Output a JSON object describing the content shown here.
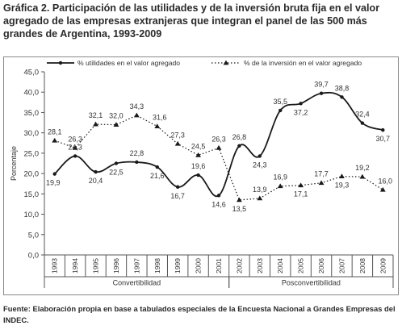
{
  "title": "Gráfica 2. Participación de las utilidades y de la inversión bruta fija en el valor agregado de las empresas extranjeras que integran el panel de las 500 más grandes de Argentina, 1993-2009",
  "source": "Fuente: Elaboración propia en base a tabulados especiales de la Encuesta Nacional a Grandes Empresas del INDEC.",
  "colors": {
    "series": "#1a1a1a",
    "frame": "#8a8a8a"
  },
  "chart_data": {
    "type": "line",
    "categories": [
      "1993",
      "1994",
      "1995",
      "1996",
      "1997",
      "1998",
      "1999",
      "2000",
      "2001",
      "2002",
      "2003",
      "2004",
      "2005",
      "2006",
      "2007",
      "2008",
      "2009"
    ],
    "ylabel": "Porcentaje",
    "ylim": [
      0,
      45
    ],
    "yticks": [
      "0,0",
      "5,0",
      "10,0",
      "15,0",
      "20,0",
      "25,0",
      "30,0",
      "35,0",
      "40,0",
      "45,0"
    ],
    "grid": false,
    "legend_position": "top",
    "periods": [
      {
        "label": "Convertibilidad",
        "from": 0,
        "to": 8
      },
      {
        "label": "Posconvertibilidad",
        "from": 9,
        "to": 16
      }
    ],
    "series": [
      {
        "name": "% utilidades en el valor agregado",
        "style": "solid",
        "marker": "circle",
        "values": [
          19.9,
          24.3,
          20.4,
          22.5,
          22.8,
          21.6,
          16.7,
          19.6,
          14.6,
          26.8,
          24.3,
          35.5,
          37.2,
          39.7,
          38.8,
          32.4,
          30.7
        ],
        "labels": [
          "19,9",
          "24,3",
          "20,4",
          "22,5",
          "22,8",
          "21,6",
          "16,7",
          "19,6",
          "14,6",
          "26,8",
          "24,3",
          "35,5",
          "37,2",
          "39,7",
          "38,8",
          "32,4",
          "30,7"
        ],
        "labeled": [
          true,
          true,
          true,
          true,
          true,
          true,
          true,
          true,
          true,
          true,
          true,
          true,
          true,
          true,
          true,
          true,
          true
        ]
      },
      {
        "name": "% de la inversión en el valor agregado",
        "style": "dotted",
        "marker": "triangle",
        "values": [
          28.1,
          26.3,
          32.1,
          32.0,
          34.3,
          31.6,
          27.3,
          24.5,
          26.3,
          13.5,
          13.9,
          16.9,
          17.1,
          17.7,
          19.3,
          19.2,
          16.0
        ],
        "labels": [
          "28,1",
          "26,3",
          "32,1",
          "32,0",
          "34,3",
          "31,6",
          "27,3",
          "24,5",
          "26,3",
          "13,5",
          "13,9",
          "16,9",
          "17,1",
          "17,7",
          "19,3",
          "19,2",
          "16,0"
        ],
        "labeled": [
          true,
          true,
          true,
          true,
          true,
          true,
          true,
          true,
          true,
          true,
          true,
          true,
          true,
          true,
          true,
          true,
          true
        ]
      }
    ]
  }
}
